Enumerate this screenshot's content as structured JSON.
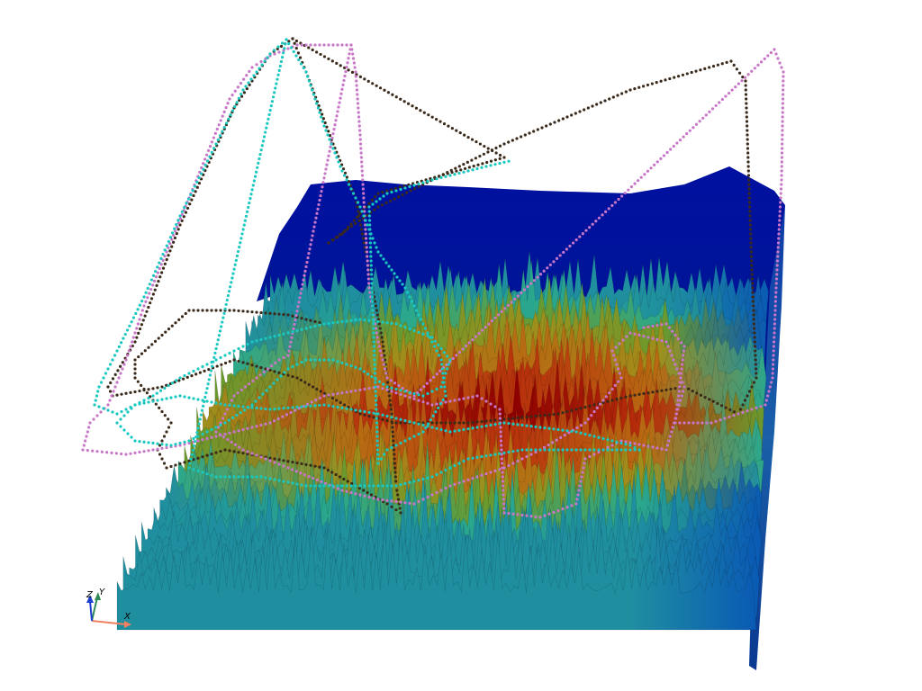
{
  "scene": {
    "background": "#ffffff",
    "terrain_colormap": [
      "#00008b",
      "#0018c8",
      "#0a5ab4",
      "#1f8fa0",
      "#2ba88c",
      "#6b9a2e",
      "#9e8f1c",
      "#b86a12",
      "#b8300c",
      "#8e0000"
    ],
    "tracks": [
      {
        "name": "",
        "color": "#3b2a1a"
      },
      {
        "name": "",
        "color": "#c876c8"
      },
      {
        "name": "",
        "color": "#19c8c0"
      }
    ]
  },
  "orientation_axes": {
    "x_label": "X",
    "y_label": "Y",
    "z_label": "Z",
    "x_color": "#f08060",
    "y_color": "#2e8b57",
    "z_color": "#1f3fd0"
  }
}
